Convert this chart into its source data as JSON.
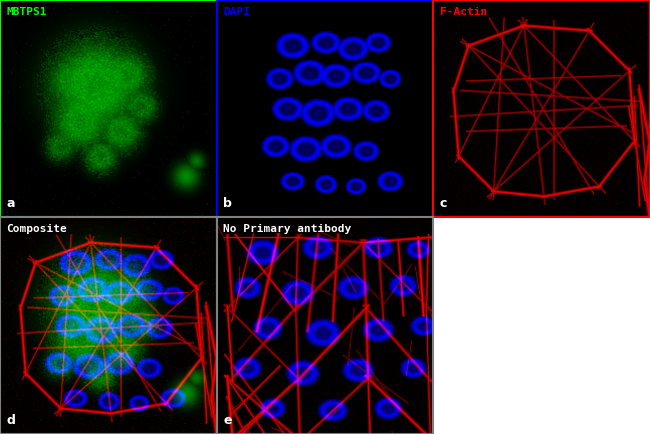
{
  "panels_order": [
    "a",
    "b",
    "c",
    "d",
    "e"
  ],
  "titles": {
    "a": "MBTPS1",
    "b": "DAPI",
    "c": "F-Actin",
    "d": "Composite",
    "e": "No Primary antibody"
  },
  "title_colors": {
    "a": "#00ff00",
    "b": "#0000ff",
    "c": "#ff0000",
    "d": "#ffffff",
    "e": "#ffffff"
  },
  "border_colors": {
    "a": "#00ff00",
    "b": "#0000ff",
    "c": "#ff0000",
    "d": "#808080",
    "e": "#808080"
  },
  "labels": {
    "a": "a",
    "b": "b",
    "c": "c",
    "d": "d",
    "e": "e"
  },
  "fig_bg": "#ffffff",
  "seed": 42,
  "size": 216
}
